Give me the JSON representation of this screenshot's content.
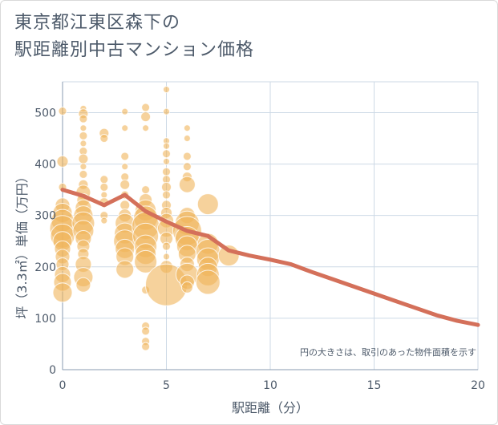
{
  "title": "東京都江東区森下の\n駅距離別中古マンション価格",
  "chart_data": {
    "type": "scatter",
    "xlabel": "駅距離（分）",
    "ylabel": "坪（3.3㎡）単価（万円）",
    "xlim": [
      0,
      20
    ],
    "ylim": [
      0,
      560
    ],
    "xticks": [
      0,
      5,
      10,
      15,
      20
    ],
    "yticks": [
      0,
      100,
      200,
      300,
      400,
      500
    ],
    "grid": true,
    "annotation": "円の大きさは、取引のあった物件面積を示す",
    "colors": {
      "bubble": "#f0b45a",
      "line": "#d4705a",
      "grid": "#cdd9e6",
      "text": "#4d5a6a"
    },
    "series": [
      {
        "type": "bubble",
        "points": [
          [
            0,
            503,
            5
          ],
          [
            0,
            405,
            7
          ],
          [
            0,
            355,
            5
          ],
          [
            0,
            320,
            9
          ],
          [
            0,
            305,
            12
          ],
          [
            0,
            290,
            14
          ],
          [
            0,
            275,
            16
          ],
          [
            0,
            260,
            15
          ],
          [
            0,
            250,
            12
          ],
          [
            0,
            235,
            10
          ],
          [
            0,
            220,
            9
          ],
          [
            0,
            205,
            8
          ],
          [
            0,
            185,
            10
          ],
          [
            0,
            170,
            11
          ],
          [
            0,
            150,
            12
          ],
          [
            1,
            508,
            4
          ],
          [
            1,
            498,
            6
          ],
          [
            1,
            488,
            5
          ],
          [
            1,
            470,
            4
          ],
          [
            1,
            455,
            5
          ],
          [
            1,
            440,
            4
          ],
          [
            1,
            425,
            5
          ],
          [
            1,
            410,
            6
          ],
          [
            1,
            395,
            4
          ],
          [
            1,
            380,
            5
          ],
          [
            1,
            360,
            6
          ],
          [
            1,
            345,
            9
          ],
          [
            1,
            330,
            8
          ],
          [
            1,
            315,
            10
          ],
          [
            1,
            300,
            12
          ],
          [
            1,
            285,
            14
          ],
          [
            1,
            270,
            13
          ],
          [
            1,
            255,
            10
          ],
          [
            1,
            240,
            8
          ],
          [
            1,
            225,
            7
          ],
          [
            1,
            205,
            10
          ],
          [
            1,
            180,
            12
          ],
          [
            1,
            165,
            9
          ],
          [
            2,
            460,
            6
          ],
          [
            2,
            450,
            5
          ],
          [
            2,
            370,
            5
          ],
          [
            2,
            355,
            5
          ],
          [
            2,
            340,
            4
          ],
          [
            2,
            325,
            6
          ],
          [
            2,
            300,
            5
          ],
          [
            2,
            290,
            4
          ],
          [
            3,
            502,
            4
          ],
          [
            3,
            470,
            4
          ],
          [
            3,
            415,
            5
          ],
          [
            3,
            395,
            4
          ],
          [
            3,
            375,
            5
          ],
          [
            3,
            360,
            6
          ],
          [
            3,
            340,
            5
          ],
          [
            3,
            320,
            6
          ],
          [
            3,
            300,
            8
          ],
          [
            3,
            285,
            12
          ],
          [
            3,
            265,
            13
          ],
          [
            3,
            250,
            14
          ],
          [
            3,
            235,
            12
          ],
          [
            3,
            220,
            11
          ],
          [
            3,
            195,
            11
          ],
          [
            4,
            510,
            5
          ],
          [
            4,
            492,
            6
          ],
          [
            4,
            470,
            4
          ],
          [
            4,
            350,
            5
          ],
          [
            4,
            330,
            8
          ],
          [
            4,
            310,
            13
          ],
          [
            4,
            295,
            15
          ],
          [
            4,
            280,
            17
          ],
          [
            4,
            260,
            16
          ],
          [
            4,
            240,
            14
          ],
          [
            4,
            225,
            13
          ],
          [
            4,
            210,
            14
          ],
          [
            4,
            155,
            5
          ],
          [
            4,
            85,
            5
          ],
          [
            4,
            75,
            5
          ],
          [
            4,
            55,
            5
          ],
          [
            4,
            45,
            5
          ],
          [
            5,
            545,
            4
          ],
          [
            5,
            502,
            4
          ],
          [
            5,
            445,
            4
          ],
          [
            5,
            435,
            4
          ],
          [
            5,
            420,
            5
          ],
          [
            5,
            405,
            4
          ],
          [
            5,
            385,
            5
          ],
          [
            5,
            370,
            5
          ],
          [
            5,
            355,
            6
          ],
          [
            5,
            340,
            5
          ],
          [
            5,
            320,
            6
          ],
          [
            5,
            305,
            7
          ],
          [
            5,
            290,
            9
          ],
          [
            5,
            275,
            11
          ],
          [
            5,
            255,
            8
          ],
          [
            5,
            240,
            5
          ],
          [
            5,
            220,
            4
          ],
          [
            5,
            200,
            8
          ],
          [
            5,
            165,
            26
          ],
          [
            6,
            470,
            4
          ],
          [
            6,
            450,
            4
          ],
          [
            6,
            415,
            5
          ],
          [
            6,
            395,
            5
          ],
          [
            6,
            375,
            6
          ],
          [
            6,
            360,
            10
          ],
          [
            6,
            300,
            10
          ],
          [
            6,
            285,
            15
          ],
          [
            6,
            270,
            18
          ],
          [
            6,
            255,
            15
          ],
          [
            6,
            240,
            13
          ],
          [
            6,
            225,
            11
          ],
          [
            6,
            205,
            9
          ],
          [
            6,
            185,
            14
          ],
          [
            6,
            170,
            9
          ],
          [
            6,
            160,
            7
          ],
          [
            7,
            322,
            13
          ],
          [
            7,
            245,
            13
          ],
          [
            7,
            230,
            15
          ],
          [
            7,
            215,
            14
          ],
          [
            7,
            200,
            12
          ],
          [
            7,
            185,
            14
          ],
          [
            7,
            170,
            15
          ],
          [
            8,
            222,
            13
          ]
        ]
      },
      {
        "type": "line",
        "x": [
          0,
          1,
          2,
          3,
          4,
          5,
          6,
          7,
          8,
          9,
          10,
          11,
          12,
          13,
          14,
          15,
          16,
          17,
          18,
          19,
          20
        ],
        "y": [
          350,
          338,
          320,
          340,
          308,
          288,
          270,
          260,
          232,
          222,
          214,
          205,
          190,
          176,
          162,
          148,
          134,
          120,
          106,
          95,
          87
        ]
      }
    ]
  }
}
